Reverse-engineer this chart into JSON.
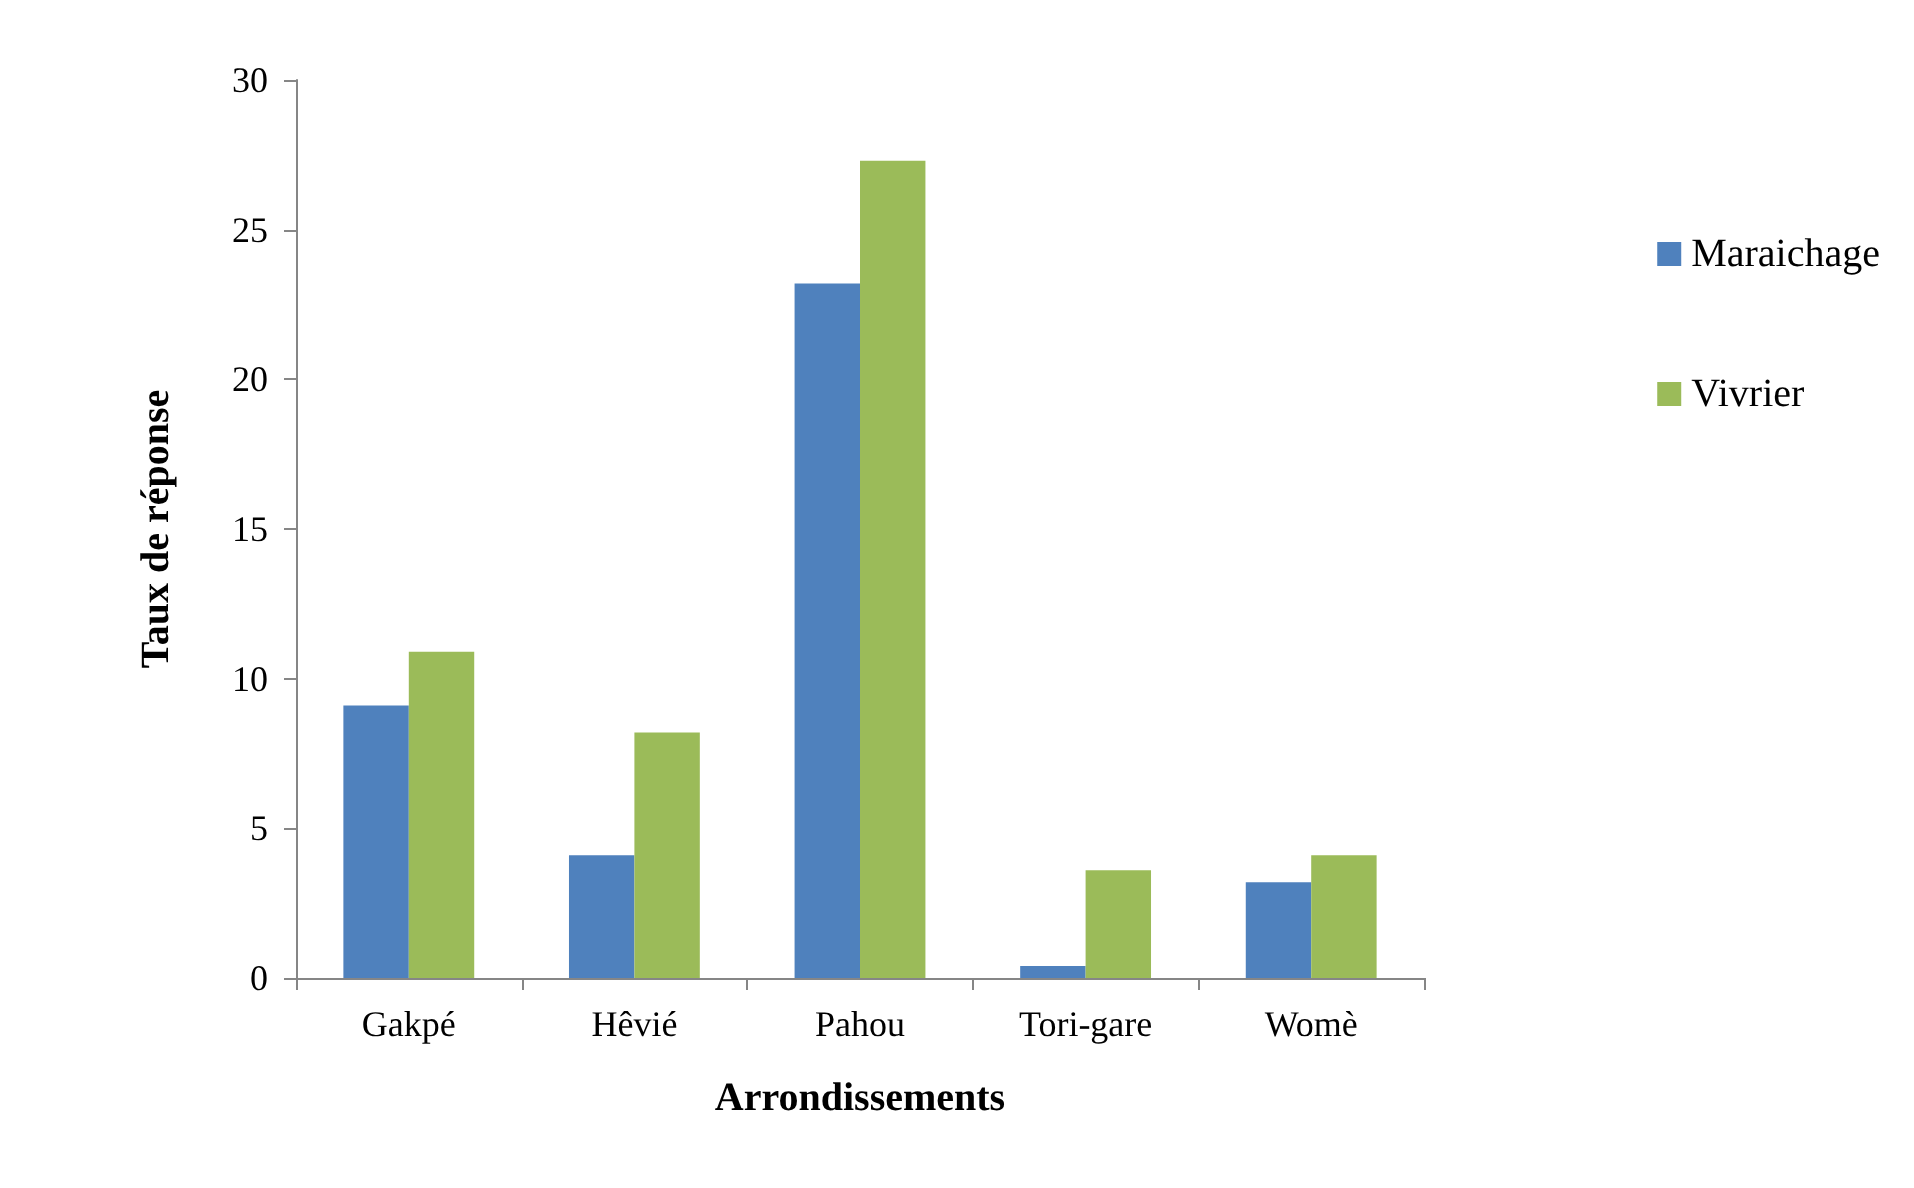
{
  "chart_data": {
    "type": "bar",
    "xlabel": "Arrondissements",
    "ylabel": "Taux de réponse",
    "categories": [
      "Gakpé",
      "Hêvié",
      "Pahou",
      "Tori-gare",
      "Womè"
    ],
    "series": [
      {
        "name": "Maraichage",
        "color": "#4f81bd",
        "values": [
          9.1,
          4.1,
          23.2,
          0.4,
          3.2
        ]
      },
      {
        "name": "Vivrier",
        "color": "#9bbb59",
        "values": [
          10.9,
          8.2,
          27.3,
          3.6,
          4.1
        ]
      }
    ],
    "ylim": [
      0,
      30
    ],
    "yticks": [
      0,
      5,
      10,
      15,
      20,
      25,
      30
    ],
    "grid": false,
    "legend": "right"
  }
}
